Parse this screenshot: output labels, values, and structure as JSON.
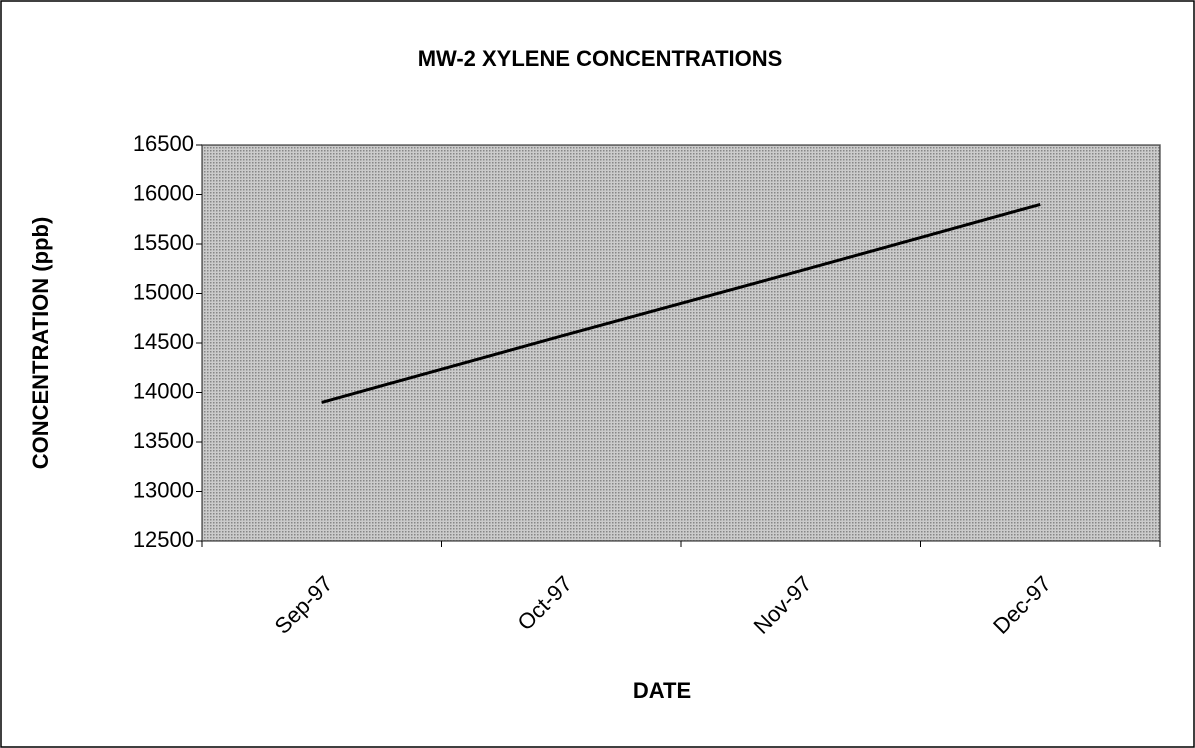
{
  "chart_data": {
    "type": "line",
    "title": "MW-2 XYLENE CONCENTRATIONS",
    "x_label": "DATE",
    "y_label": "CONCENTRATION (ppb)",
    "categories": [
      "Sep-97",
      "Oct-97",
      "Nov-97",
      "Dec-97"
    ],
    "series": [
      {
        "name": "MW-2",
        "color": "#000000",
        "values": [
          13900,
          14570,
          15230,
          15900
        ]
      }
    ],
    "ylim": [
      12500,
      16500
    ],
    "yticks": [
      12500,
      13000,
      13500,
      14000,
      14500,
      15000,
      15500,
      16000,
      16500
    ],
    "plot_background": "#b8b8b8"
  }
}
